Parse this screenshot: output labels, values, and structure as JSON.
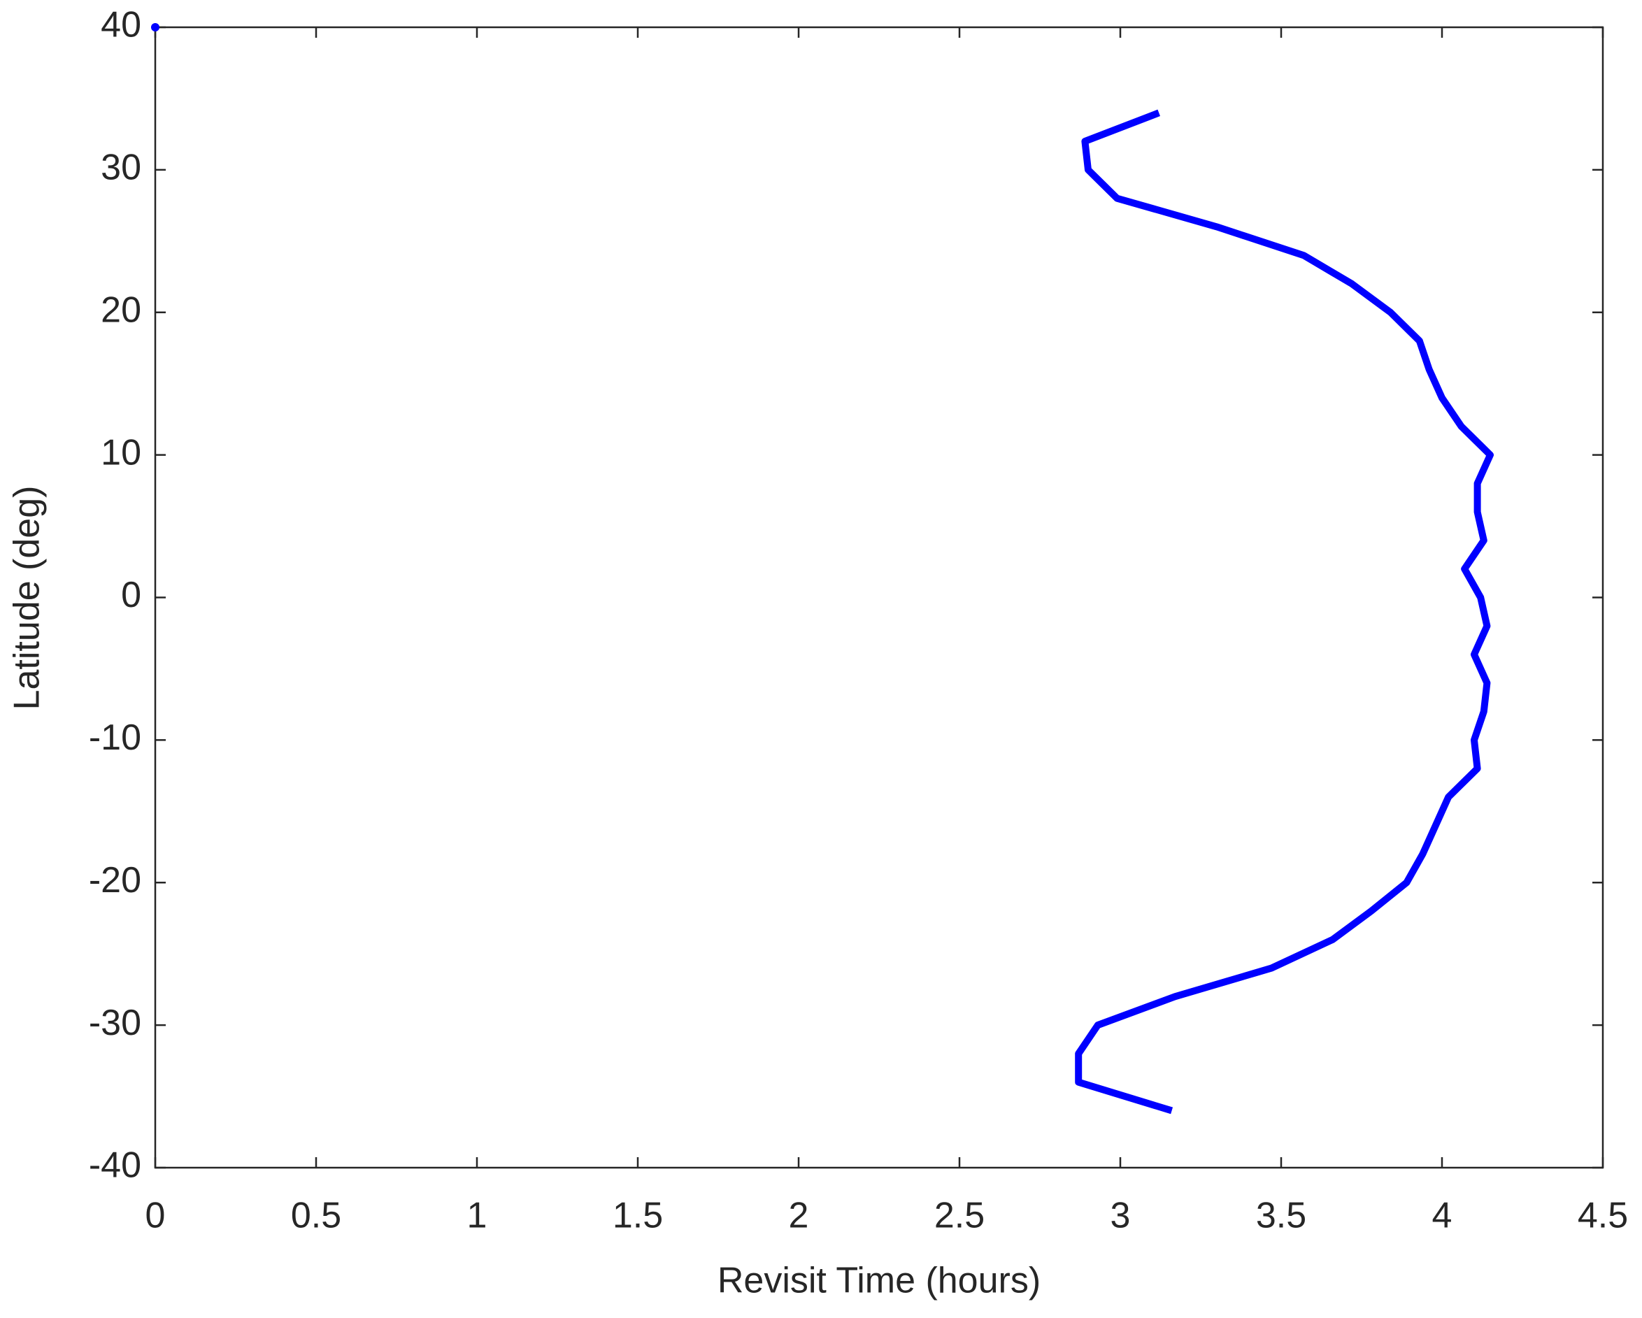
{
  "chart_data": {
    "type": "line",
    "xlabel": "Revisit Time (hours)",
    "ylabel": "Latitude (deg)",
    "xlim": [
      0,
      4.5
    ],
    "xticks": [
      0,
      0.5,
      1,
      1.5,
      2,
      2.5,
      3,
      3.5,
      4,
      4.5
    ],
    "ylim": [
      -40,
      40
    ],
    "yticks": [
      -40,
      -30,
      -20,
      -10,
      0,
      10,
      20,
      30,
      40
    ],
    "grid": false,
    "box": true,
    "series": [
      {
        "color": "#0000ff",
        "marker": "none",
        "x": [
          3.12,
          2.89,
          2.9,
          2.99,
          3.3,
          3.57,
          3.72,
          3.84,
          3.93,
          3.96,
          4.0,
          4.06,
          4.15,
          4.11,
          4.11,
          4.13,
          4.07,
          4.12,
          4.14,
          4.1,
          4.14,
          4.13,
          4.1,
          4.11,
          4.02,
          3.98,
          3.94,
          3.89,
          3.78,
          3.66,
          3.47,
          3.17,
          2.93,
          2.87,
          2.87,
          3.16
        ],
        "values": [
          34,
          32,
          30,
          28,
          26,
          24,
          22,
          20,
          18,
          16,
          14,
          12,
          10,
          8,
          6,
          4,
          2,
          0,
          -2,
          -4,
          -6,
          -8,
          -10,
          -12,
          -14,
          -16,
          -18,
          -20,
          -22,
          -24,
          -26,
          -28,
          -30,
          -32,
          -34,
          -36
        ]
      },
      {
        "color": "#0000ff",
        "marker": "dot",
        "x": [
          0
        ],
        "values": [
          40
        ]
      }
    ]
  }
}
